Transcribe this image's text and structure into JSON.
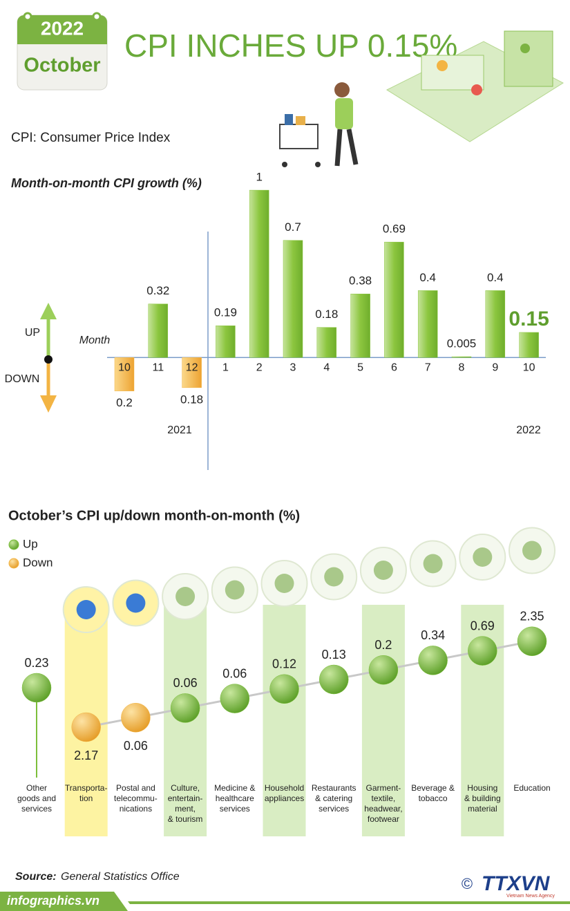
{
  "header": {
    "year": "2022",
    "month": "October",
    "title": "CPI INCHES UP 0.15%",
    "subtitle": "CPI: Consumer Price Index"
  },
  "chart_data": [
    {
      "type": "bar",
      "title": "Month-on-month CPI growth (%)",
      "x_label": "Month",
      "up_label": "UP",
      "down_label": "DOWN",
      "categories": [
        "10",
        "11",
        "12",
        "1",
        "2",
        "3",
        "4",
        "5",
        "6",
        "7",
        "8",
        "9",
        "10"
      ],
      "values": [
        -0.2,
        0.32,
        -0.18,
        0.19,
        1,
        0.7,
        0.18,
        0.38,
        0.69,
        0.4,
        0.005,
        0.4,
        0.15
      ],
      "value_labels": [
        "0.2",
        "0.32",
        "0.18",
        "0.19",
        "1",
        "0.7",
        "0.18",
        "0.38",
        "0.69",
        "0.4",
        "0.005",
        "0.4",
        "0.15"
      ],
      "years": [
        "2021",
        "2022"
      ],
      "up_color": "#8cc63f",
      "down_color": "#f3b443",
      "ylim": [
        -0.35,
        1.05
      ]
    },
    {
      "type": "dot",
      "title": "October’s CPI up/down month-on-month (%)",
      "legend": [
        {
          "name": "Up",
          "color": "#7cbf3a"
        },
        {
          "name": "Down",
          "color": "#f3b443"
        }
      ],
      "categories": [
        "Other\ngoods and\nservices",
        "Transporta-\ntion",
        "Postal and\ntelecommu-\nnications",
        "Culture,\nentertain-\nment,\n& tourism",
        "Medicine &\nhealthcare\nservices",
        "Household\nappliances",
        "Restaurants\n& catering\nservices",
        "Garment-\ntextile,\nheadwear,\nfootwear",
        "Beverage &\ntobacco",
        "Housing\n& building\nmaterial",
        "Education"
      ],
      "values": [
        0.23,
        -2.17,
        -0.06,
        0.06,
        0.06,
        0.12,
        0.13,
        0.2,
        0.34,
        0.69,
        2.35
      ],
      "value_labels": [
        "0.23",
        "2.17",
        "0.06",
        "0.06",
        "0.06",
        "0.12",
        "0.13",
        "0.2",
        "0.34",
        "0.69",
        "2.35"
      ]
    }
  ],
  "source": {
    "label": "Source:",
    "text": "General Statistics Office"
  },
  "footer": {
    "site": "infographics.vn",
    "copyright": "©",
    "agency": "TTXVN",
    "agency_name": "Vietnam News Agency"
  }
}
